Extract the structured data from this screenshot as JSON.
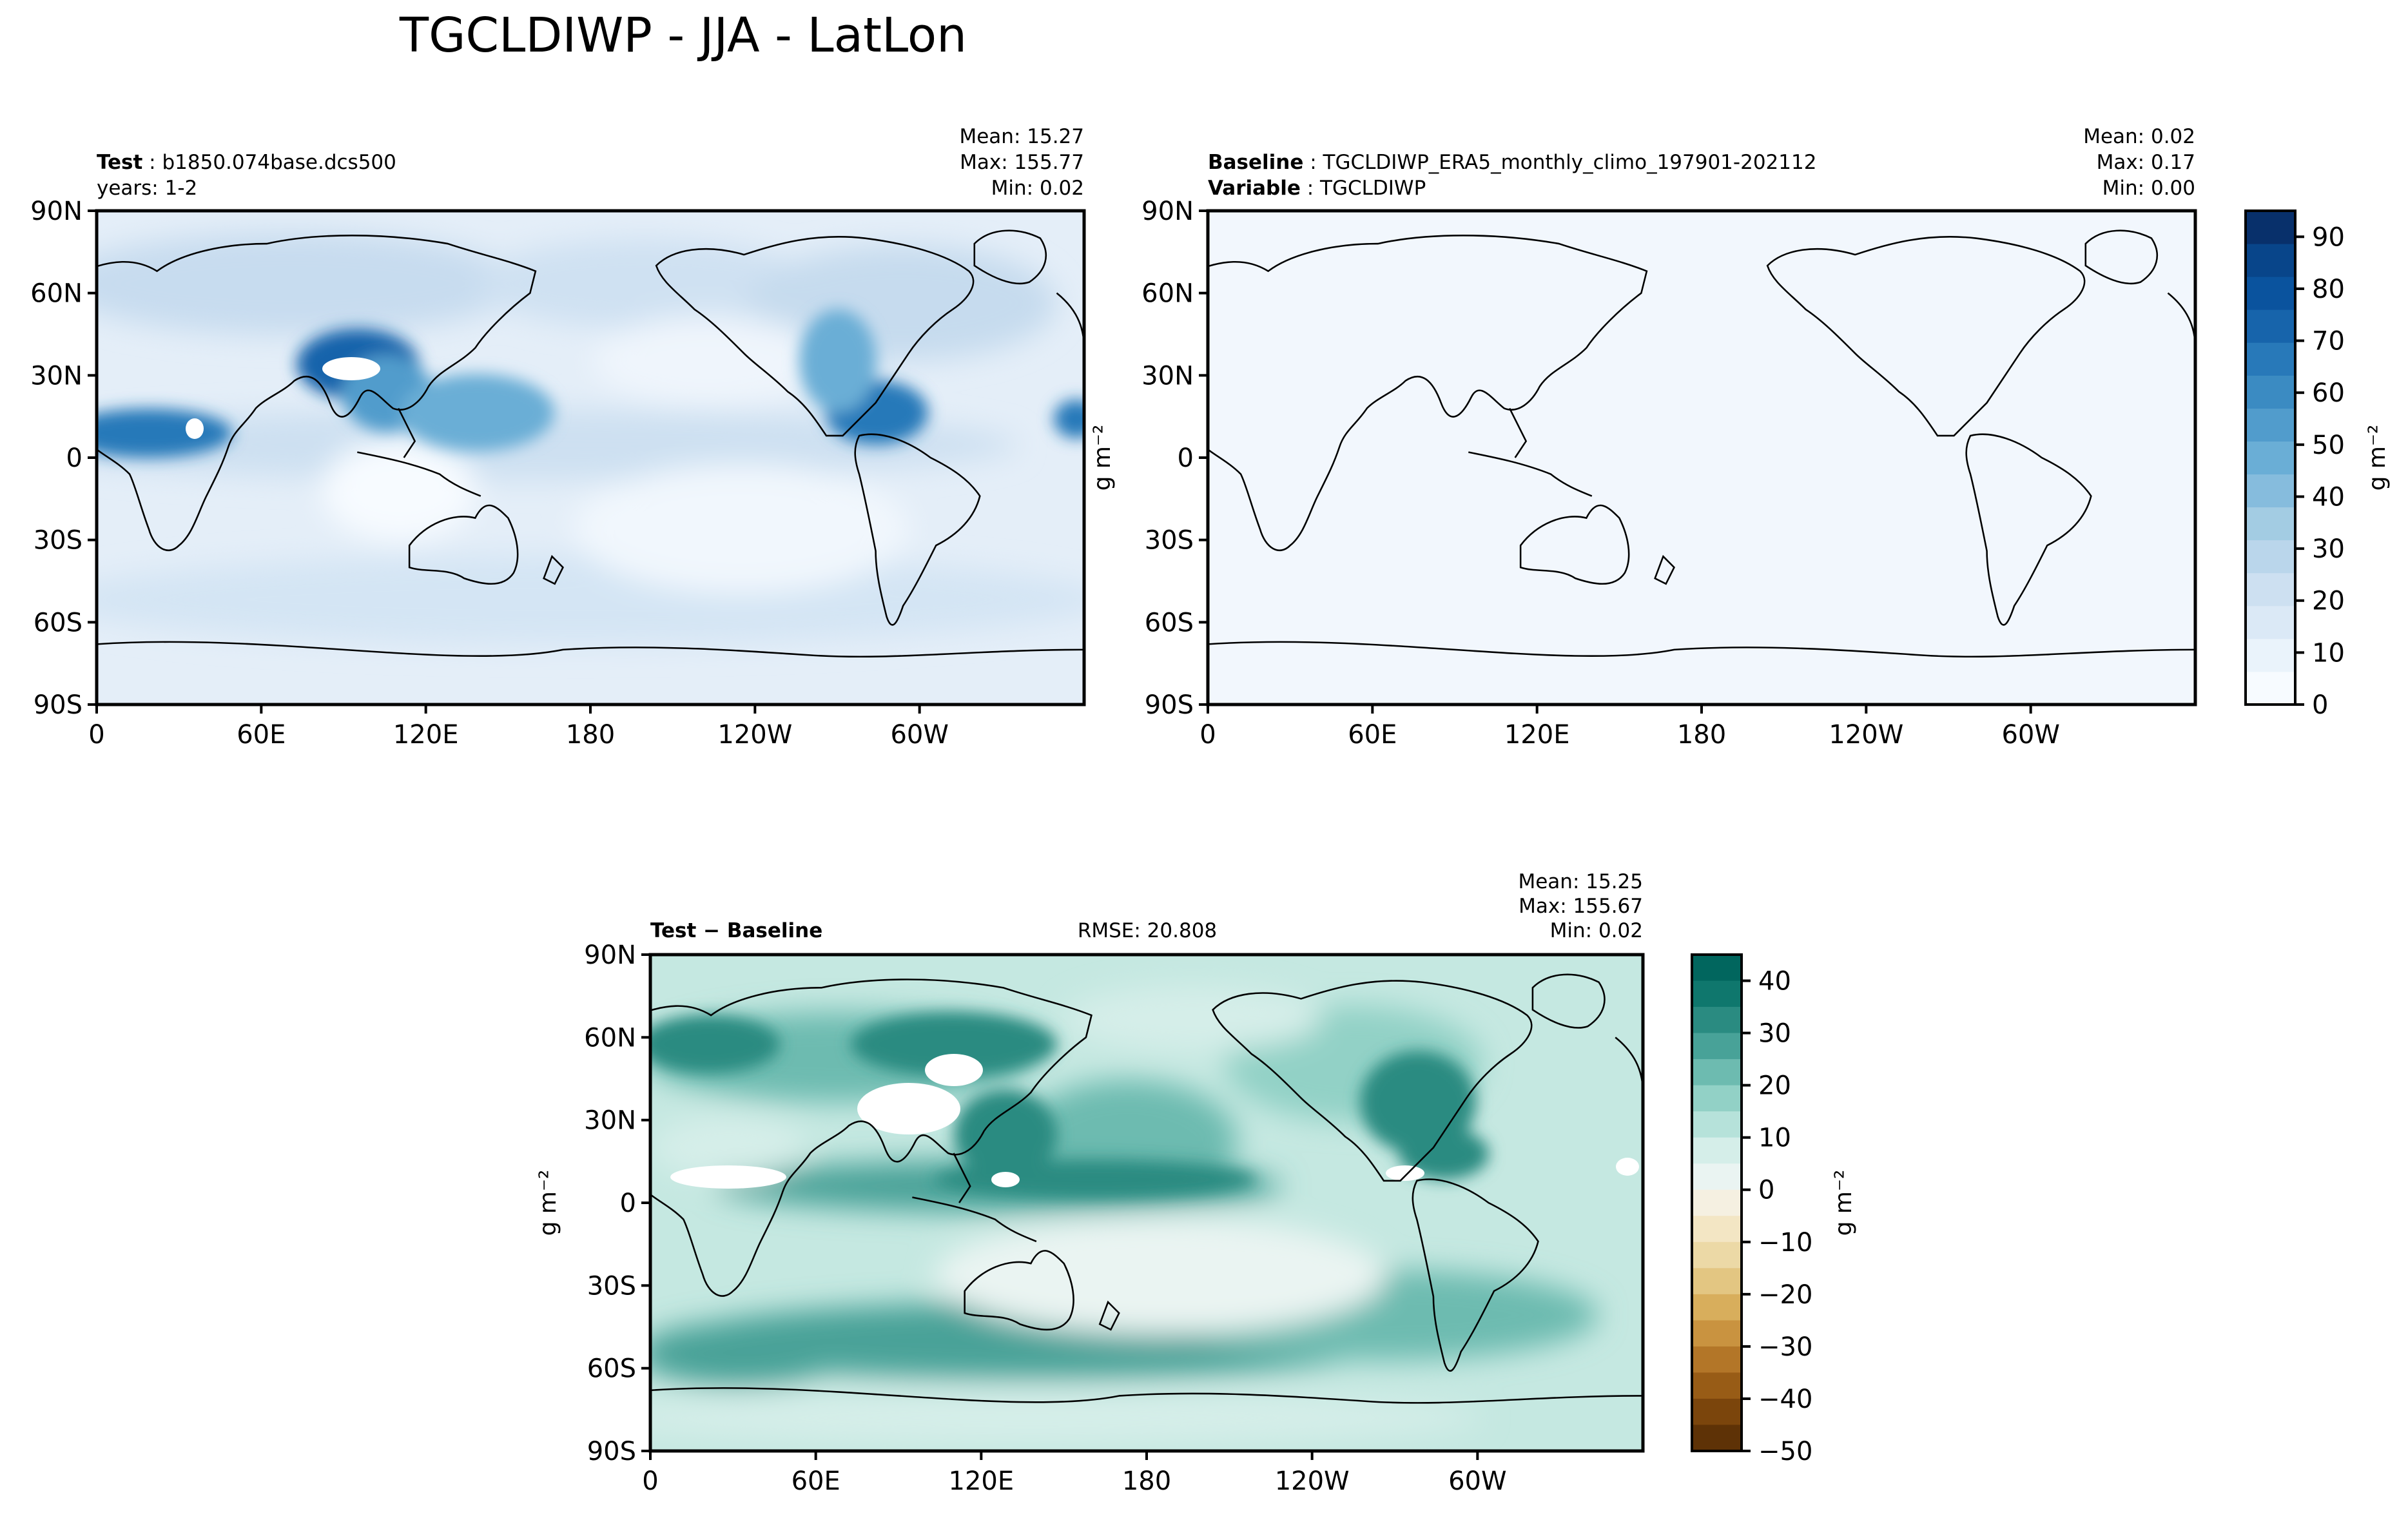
{
  "figure": {
    "suptitle": "TGCLDIWP - JJA - LatLon"
  },
  "axes": {
    "lat_ticks": [
      "90N",
      "60N",
      "30N",
      "0",
      "30S",
      "60S",
      "90S"
    ],
    "lon_ticks": [
      "0",
      "60E",
      "120E",
      "180",
      "120W",
      "60W"
    ]
  },
  "panels": {
    "test": {
      "label": "Test",
      "case": "b1850.074base.dcs500",
      "years": "years: 1-2",
      "stats": [
        "Mean: 15.27",
        "Max: 155.77",
        "Min:  0.02"
      ],
      "units": "g m⁻²"
    },
    "baseline": {
      "label": "Baseline",
      "case": "TGCLDIWP_ERA5_monthly_climo_197901-202112",
      "var_label": "Variable",
      "var_value": "TGCLDIWP",
      "stats": [
        "Mean:  0.02",
        "Max:  0.17",
        "Min:  0.00"
      ]
    },
    "diff": {
      "label": "Test − Baseline",
      "rmse": "RMSE: 20.808",
      "stats": [
        "Mean: 15.25",
        "Max: 155.67",
        "Min:  0.02"
      ],
      "units": "g m⁻²"
    }
  },
  "colorbars": {
    "main": {
      "ticks": [
        "0",
        "10",
        "20",
        "30",
        "40",
        "50",
        "60",
        "70",
        "80",
        "90"
      ],
      "units": "g m⁻²",
      "colors": [
        "#f7fbff",
        "#eaf3fb",
        "#dbe9f6",
        "#cde0f1",
        "#bad6eb",
        "#a3cce3",
        "#86bcdd",
        "#6aaed6",
        "#519ccc",
        "#3b8bc2",
        "#2879b9",
        "#1764ab",
        "#0a539e",
        "#08458a",
        "#08306b"
      ]
    },
    "diff": {
      "ticks": [
        "40",
        "30",
        "20",
        "10",
        "0",
        "−10",
        "−20",
        "−30",
        "−40",
        "−50"
      ],
      "units": "g m⁻²",
      "colors": [
        "#01665e",
        "#0f776d",
        "#2a8b81",
        "#48a298",
        "#6dbbb0",
        "#92d1c6",
        "#b6e2da",
        "#d5eee9",
        "#eaf4f2",
        "#f5f0e1",
        "#f3e6c4",
        "#ecd9a6",
        "#e3c682",
        "#d8ae5c",
        "#c99340",
        "#b37628",
        "#985c16",
        "#7b450c",
        "#5e3206"
      ]
    }
  },
  "chart_data": [
    {
      "type": "heatmap",
      "title": "Test: b1850.074base.dcs500",
      "subtitle": "years: 1-2",
      "xlabel": "",
      "ylabel": "g m⁻²",
      "xlim": [
        0,
        360
      ],
      "ylim": [
        -90,
        90
      ],
      "clim": [
        0,
        95
      ],
      "stats": {
        "mean": 15.27,
        "max": 155.77,
        "min": 0.02
      },
      "features": [
        {
          "lon": 97,
          "lat": 32,
          "value": 95
        },
        {
          "lon": 25,
          "lat": 10,
          "value": 75
        },
        {
          "lon": 280,
          "lat": 10,
          "value": 80
        },
        {
          "lon": 140,
          "lat": 8,
          "value": 45
        },
        {
          "lon": 180,
          "lat": 8,
          "value": 30
        },
        {
          "lon": 90,
          "lat": -55,
          "value": 25
        }
      ]
    },
    {
      "type": "heatmap",
      "title": "Baseline: TGCLDIWP_ERA5_monthly_climo_197901-202112",
      "subtitle": "Variable: TGCLDIWP",
      "xlim": [
        0,
        360
      ],
      "ylim": [
        -90,
        90
      ],
      "clim": [
        0,
        95
      ],
      "stats": {
        "mean": 0.02,
        "max": 0.17,
        "min": 0.0
      }
    },
    {
      "type": "heatmap",
      "title": "Test − Baseline",
      "xlabel": "",
      "ylabel": "g m⁻²",
      "xlim": [
        0,
        360
      ],
      "ylim": [
        -90,
        90
      ],
      "clim": [
        -50,
        45
      ],
      "rmse": 20.808,
      "stats": {
        "mean": 15.25,
        "max": 155.67,
        "min": 0.02
      },
      "features": [
        {
          "lon": 97,
          "lat": 32,
          "value": 45
        },
        {
          "lon": 25,
          "lat": 10,
          "value": 45
        },
        {
          "lon": 285,
          "lat": 35,
          "value": 35
        },
        {
          "lon": 150,
          "lat": 35,
          "value": 30
        },
        {
          "lon": 160,
          "lat": 8,
          "value": 30
        },
        {
          "lon": 90,
          "lat": -55,
          "value": 30
        },
        {
          "lon": 250,
          "lat": -40,
          "value": 25
        }
      ]
    }
  ]
}
